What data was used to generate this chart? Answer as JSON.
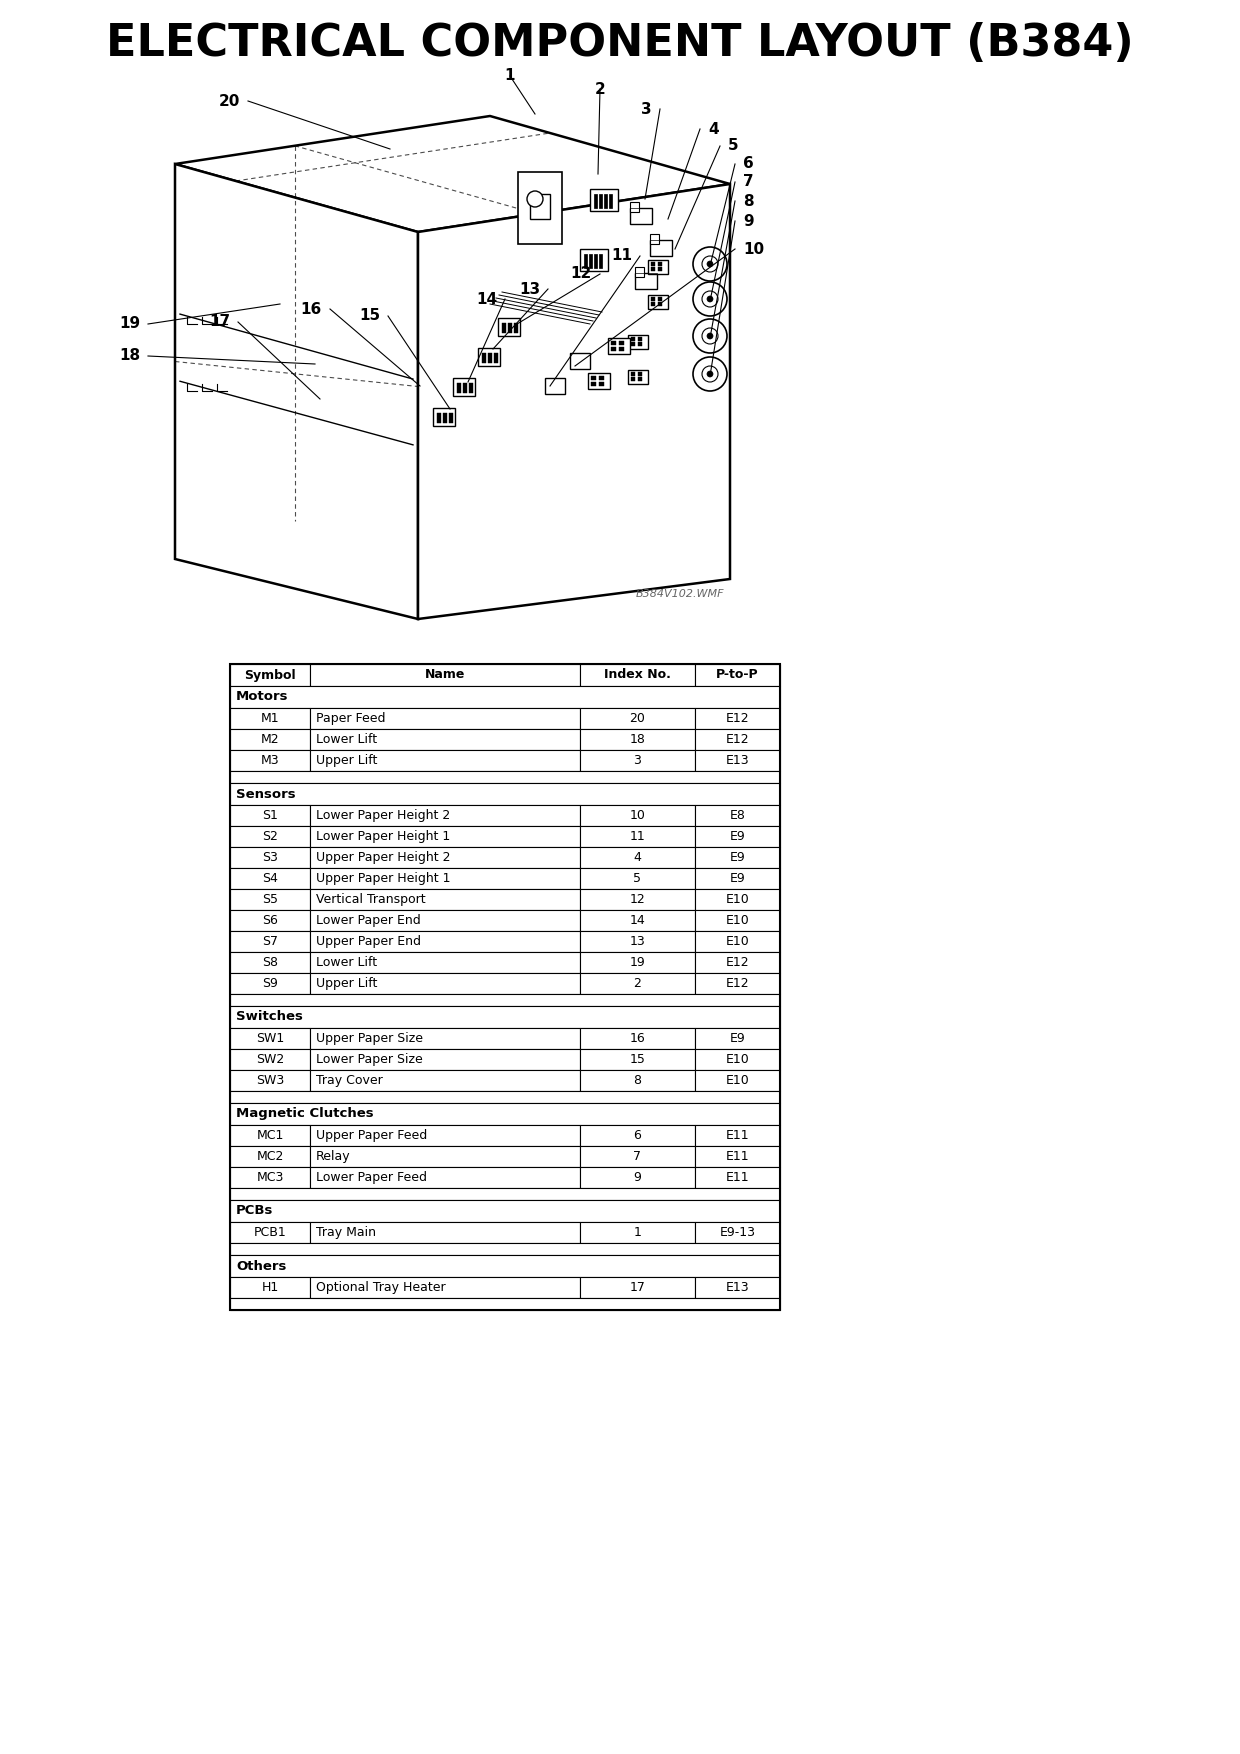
{
  "title": "ELECTRICAL COMPONENT LAYOUT (B384)",
  "title_fontsize": 32,
  "title_fontweight": "bold",
  "bg_color": "#ffffff",
  "watermark": "B384V102.WMF",
  "table_header": [
    "Symbol",
    "Name",
    "Index No.",
    "P-to-P"
  ],
  "sections": [
    {
      "label": "Motors",
      "rows": [
        [
          "M1",
          "Paper Feed",
          "20",
          "E12"
        ],
        [
          "M2",
          "Lower Lift",
          "18",
          "E12"
        ],
        [
          "M3",
          "Upper Lift",
          "3",
          "E13"
        ]
      ]
    },
    {
      "label": "Sensors",
      "rows": [
        [
          "S1",
          "Lower Paper Height 2",
          "10",
          "E8"
        ],
        [
          "S2",
          "Lower Paper Height 1",
          "11",
          "E9"
        ],
        [
          "S3",
          "Upper Paper Height 2",
          "4",
          "E9"
        ],
        [
          "S4",
          "Upper Paper Height 1",
          "5",
          "E9"
        ],
        [
          "S5",
          "Vertical Transport",
          "12",
          "E10"
        ],
        [
          "S6",
          "Lower Paper End",
          "14",
          "E10"
        ],
        [
          "S7",
          "Upper Paper End",
          "13",
          "E10"
        ],
        [
          "S8",
          "Lower Lift",
          "19",
          "E12"
        ],
        [
          "S9",
          "Upper Lift",
          "2",
          "E12"
        ]
      ]
    },
    {
      "label": "Switches",
      "rows": [
        [
          "SW1",
          "Upper Paper Size",
          "16",
          "E9"
        ],
        [
          "SW2",
          "Lower Paper Size",
          "15",
          "E10"
        ],
        [
          "SW3",
          "Tray Cover",
          "8",
          "E10"
        ]
      ]
    },
    {
      "label": "Magnetic Clutches",
      "rows": [
        [
          "MC1",
          "Upper Paper Feed",
          "6",
          "E11"
        ],
        [
          "MC2",
          "Relay",
          "7",
          "E11"
        ],
        [
          "MC3",
          "Lower Paper Feed",
          "9",
          "E11"
        ]
      ]
    },
    {
      "label": "PCBs",
      "rows": [
        [
          "PCB1",
          "Tray Main",
          "1",
          "E9-13"
        ]
      ]
    },
    {
      "label": "Others",
      "rows": [
        [
          "H1",
          "Optional Tray Heater",
          "17",
          "E13"
        ]
      ]
    }
  ]
}
